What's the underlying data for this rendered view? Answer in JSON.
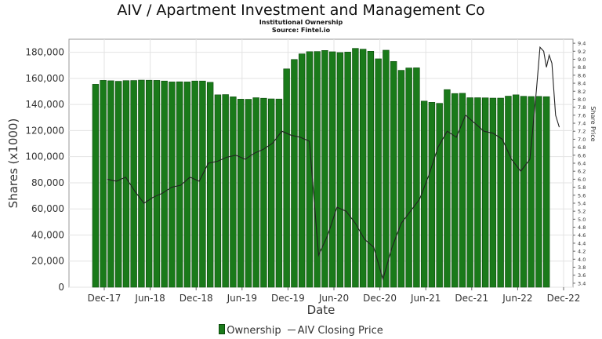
{
  "title": "AIV / Apartment Investment and Management Co",
  "subtitle1": "Institutional Ownership",
  "subtitle2": "Source: Fintel.io",
  "legend": {
    "ownership": "Ownership",
    "price": "AIV Closing Price"
  },
  "chart_data": {
    "type": "bar",
    "xlabel": "Date",
    "ylabel": "Shares (x1000)",
    "y2label": "Share Price",
    "ylim": [
      0,
      190000
    ],
    "y2lim": [
      3.3,
      9.5
    ],
    "yticks": [
      "0",
      "20,000",
      "40,000",
      "60,000",
      "80,000",
      "100,000",
      "120,000",
      "140,000",
      "160,000",
      "180,000"
    ],
    "y2ticks": [
      "3.4",
      "3.6",
      "3.8",
      "4.0",
      "4.2",
      "4.4",
      "4.6",
      "4.8",
      "5.0",
      "5.2",
      "5.4",
      "5.6",
      "5.8",
      "6.0",
      "6.2",
      "6.4",
      "6.6",
      "6.8",
      "7.0",
      "7.2",
      "7.4",
      "7.6",
      "7.8",
      "8.0",
      "8.2",
      "8.4",
      "8.6",
      "8.8",
      "9.0",
      "9.2",
      "9.4"
    ],
    "xticks": [
      "Dec-17",
      "Jun-18",
      "Dec-18",
      "Jun-19",
      "Dec-19",
      "Jun-20",
      "Dec-20",
      "Jun-21",
      "Dec-21",
      "Jun-22",
      "Dec-22"
    ],
    "grid": true,
    "legend_position": "bottom",
    "bar_color": "#1a7a1a",
    "line_color": "#222222",
    "series": [
      {
        "name": "Ownership",
        "kind": "bar",
        "values": [
          155500,
          158500,
          158200,
          157800,
          158300,
          158400,
          158700,
          158600,
          158500,
          158000,
          157300,
          157400,
          157300,
          158000,
          158000,
          157000,
          147400,
          147600,
          145900,
          144100,
          144000,
          145200,
          144800,
          144300,
          144200,
          167300,
          174500,
          178800,
          180500,
          180600,
          181400,
          180400,
          179800,
          180200,
          183000,
          182400,
          180800,
          175000,
          181600,
          173000,
          166200,
          168000,
          168100,
          142600,
          141700,
          140900,
          151400,
          148400,
          148600,
          145200,
          145200,
          145100,
          144900,
          144900,
          146400,
          147400,
          146300,
          146100,
          146200,
          146000
        ]
      },
      {
        "name": "AIV Closing Price",
        "kind": "line",
        "points": [
          [
            2017.95,
            6.0
          ],
          [
            2018.05,
            5.95
          ],
          [
            2018.15,
            6.05
          ],
          [
            2018.25,
            5.7
          ],
          [
            2018.35,
            5.4
          ],
          [
            2018.45,
            5.55
          ],
          [
            2018.55,
            5.65
          ],
          [
            2018.65,
            5.8
          ],
          [
            2018.75,
            5.85
          ],
          [
            2018.85,
            6.05
          ],
          [
            2018.95,
            5.95
          ],
          [
            2019.05,
            6.4
          ],
          [
            2019.15,
            6.45
          ],
          [
            2019.25,
            6.55
          ],
          [
            2019.35,
            6.6
          ],
          [
            2019.45,
            6.5
          ],
          [
            2019.55,
            6.65
          ],
          [
            2019.65,
            6.75
          ],
          [
            2019.75,
            6.9
          ],
          [
            2019.85,
            7.2
          ],
          [
            2019.95,
            7.1
          ],
          [
            2020.05,
            7.05
          ],
          [
            2020.15,
            6.95
          ],
          [
            2020.25,
            4.1
          ],
          [
            2020.35,
            4.6
          ],
          [
            2020.45,
            5.3
          ],
          [
            2020.55,
            5.2
          ],
          [
            2020.65,
            4.9
          ],
          [
            2020.75,
            4.5
          ],
          [
            2020.85,
            4.3
          ],
          [
            2020.95,
            3.5
          ],
          [
            2021.05,
            4.3
          ],
          [
            2021.15,
            4.9
          ],
          [
            2021.25,
            5.2
          ],
          [
            2021.35,
            5.5
          ],
          [
            2021.45,
            6.1
          ],
          [
            2021.55,
            6.8
          ],
          [
            2021.65,
            7.2
          ],
          [
            2021.75,
            7.05
          ],
          [
            2021.85,
            7.6
          ],
          [
            2021.95,
            7.4
          ],
          [
            2022.05,
            7.2
          ],
          [
            2022.15,
            7.15
          ],
          [
            2022.25,
            7.0
          ],
          [
            2022.35,
            6.5
          ],
          [
            2022.45,
            6.2
          ],
          [
            2022.55,
            6.5
          ],
          [
            2022.62,
            8.2
          ],
          [
            2022.66,
            9.3
          ],
          [
            2022.7,
            9.2
          ],
          [
            2022.73,
            8.8
          ],
          [
            2022.76,
            9.1
          ],
          [
            2022.79,
            8.9
          ],
          [
            2022.83,
            7.6
          ],
          [
            2022.87,
            7.3
          ]
        ]
      }
    ]
  }
}
